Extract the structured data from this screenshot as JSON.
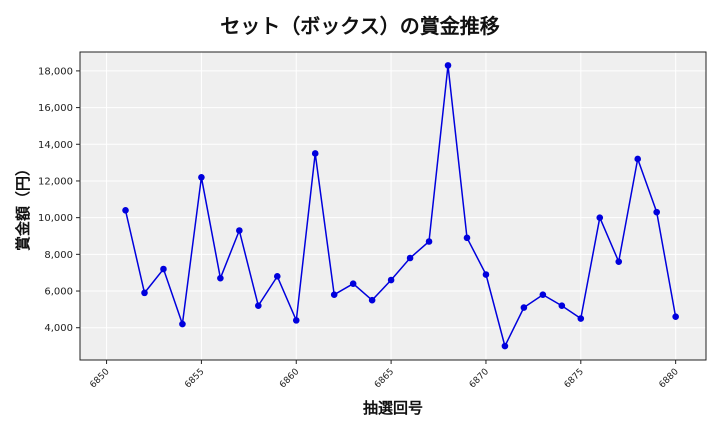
{
  "chart_data": {
    "type": "line",
    "title": "セット（ボックス）の賞金推移",
    "xlabel": "抽選回号",
    "ylabel": "賞金額（円）",
    "x": [
      6851,
      6852,
      6853,
      6854,
      6855,
      6856,
      6857,
      6858,
      6859,
      6860,
      6861,
      6862,
      6863,
      6864,
      6865,
      6866,
      6867,
      6868,
      6869,
      6870,
      6871,
      6872,
      6873,
      6874,
      6875,
      6876,
      6877,
      6878,
      6879,
      6880
    ],
    "series": [
      {
        "name": "セット（ボックス）",
        "values": [
          10400,
          5900,
          7200,
          4200,
          12200,
          6700,
          9300,
          5200,
          6800,
          4400,
          13500,
          5800,
          6400,
          5500,
          6600,
          7800,
          8700,
          18300,
          8900,
          6900,
          3000,
          5100,
          5800,
          5200,
          4500,
          10000,
          7600,
          13200,
          10300,
          4600
        ],
        "color": "#0000dd",
        "marker": "circle"
      }
    ],
    "xticks": [
      6850,
      6855,
      6860,
      6865,
      6870,
      6875,
      6880
    ],
    "yticks": [
      4000,
      6000,
      8000,
      10000,
      12000,
      14000,
      16000,
      18000
    ],
    "ytick_labels": [
      "4,000",
      "6,000",
      "8,000",
      "10,000",
      "12,000",
      "14,000",
      "16,000",
      "18,000"
    ],
    "xlim": [
      6848.6,
      6881.6
    ],
    "ylim": [
      2240,
      19030
    ],
    "grid": true,
    "legend": "none",
    "background": "#efefef"
  }
}
